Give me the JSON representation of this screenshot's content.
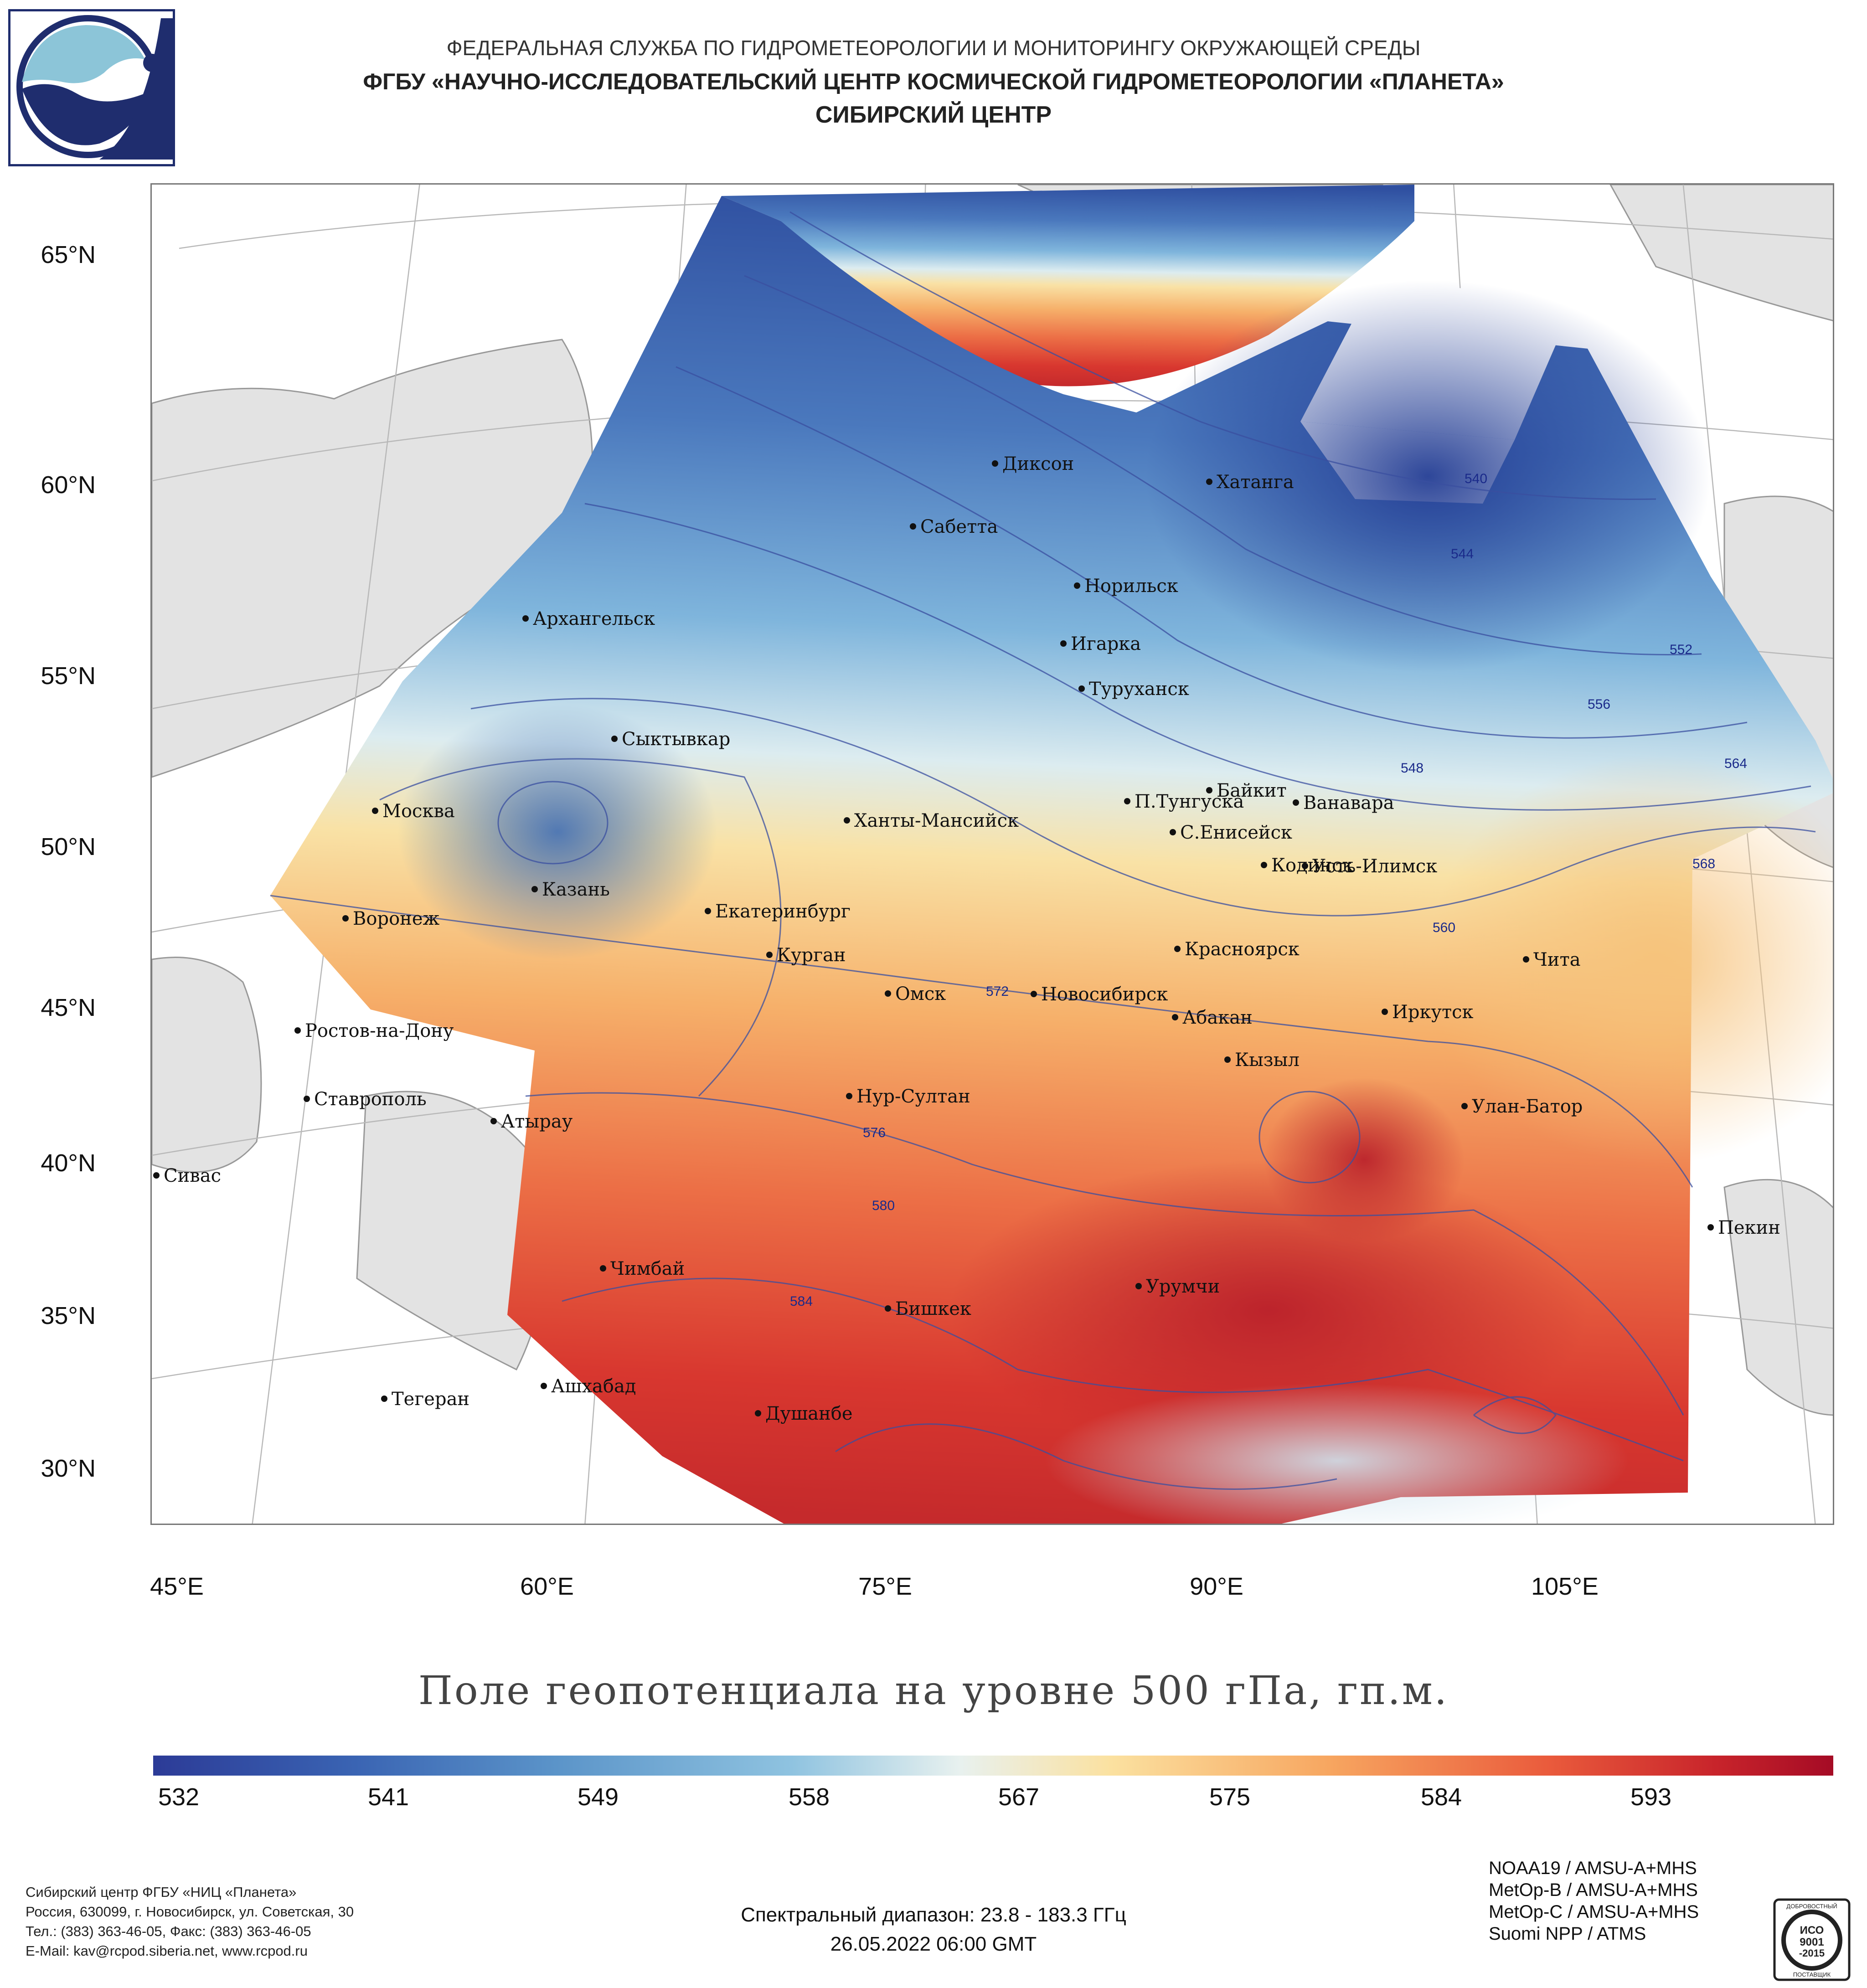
{
  "header": {
    "line1": "ФЕДЕРАЛЬНАЯ СЛУЖБА ПО ГИДРОМЕТЕОРОЛОГИИ И МОНИТОРИНГУ ОКРУЖАЮЩЕЙ СРЕДЫ",
    "line2": "ФГБУ «НАУЧНО-ИССЛЕДОВАТЕЛЬСКИЙ ЦЕНТР КОСМИЧЕСКОЙ ГИДРОМЕТЕОРОЛОГИИ «ПЛАНЕТА»",
    "line3": "СИБИРСКИЙ ЦЕНТР"
  },
  "logo": {
    "icon": "planeta-logo"
  },
  "map": {
    "lat_labels": [
      "65°N",
      "60°N",
      "55°N",
      "50°N",
      "45°N",
      "40°N",
      "35°N",
      "30°N"
    ],
    "lon_labels": [
      "45°E",
      "60°E",
      "75°E",
      "90°E",
      "105°E"
    ],
    "cities": [
      "Диксон",
      "Хатанга",
      "Сабетта",
      "Норильск",
      "Архангельск",
      "Игарка",
      "Туруханск",
      "Сыктывкар",
      "Байкит",
      "Москва",
      "П.Тунгуска",
      "Ванавара",
      "Ханты-Мансийск",
      "С.Енисейск",
      "Кодинск",
      "Усть-Илимск",
      "Казань",
      "Екатеринбург",
      "Воронеж",
      "Красноярск",
      "Курган",
      "Чита",
      "Омск",
      "Новосибирск",
      "Иркутск",
      "Ростов-на-Дону",
      "Абакан",
      "Кызыл",
      "Нур-Султан",
      "Ставрополь",
      "Улан-Батор",
      "Атырау",
      "Сивас",
      "Пекин",
      "Чимбай",
      "Урумчи",
      "Бишкек",
      "Ашхабад",
      "Тегеран",
      "Душанбе"
    ],
    "contour_labels": [
      "540",
      "544",
      "548",
      "552",
      "556",
      "560",
      "564",
      "568",
      "572",
      "576",
      "580",
      "584"
    ]
  },
  "title": "Поле геопотенциала на уровне 500 гПа, гп.м.",
  "colorbar": {
    "labels": [
      "532",
      "541",
      "549",
      "558",
      "567",
      "575",
      "584",
      "593"
    ],
    "colors": [
      "#2c3b97",
      "#3a64b3",
      "#5b94c9",
      "#8fc3e0",
      "#e8f1ef",
      "#fbe1a0",
      "#f7a660",
      "#ea5b3c",
      "#c8242b",
      "#a50b25"
    ]
  },
  "footer_left": [
    "Сибирский центр ФГБУ «НИЦ «Планета»",
    "Россия, 630099, г. Новосибирск, ул. Советская, 30",
    "Тел.: (383) 363-46-05, Факс: (383) 363-46-05",
    "E-Mail: kav@rcpod.siberia.net, www.rcpod.ru"
  ],
  "footer_center": {
    "spectral": "Спектральный диапазон: 23.8 - 183.3 ГГц",
    "datetime": "26.05.2022 06:00 GMT"
  },
  "footer_right": [
    "NOAA19 / AMSU-A+MHS",
    "MetOp-B / AMSU-A+MHS",
    "MetOp-C / AMSU-A+MHS",
    "Suomi NPP / ATMS"
  ],
  "iso_badge": {
    "top": "ДОБРОВОСТНЫЙ",
    "iso": "ИСО",
    "num": "9001",
    "year": "-2015",
    "bottom": "ПОСТАВЩИК"
  }
}
